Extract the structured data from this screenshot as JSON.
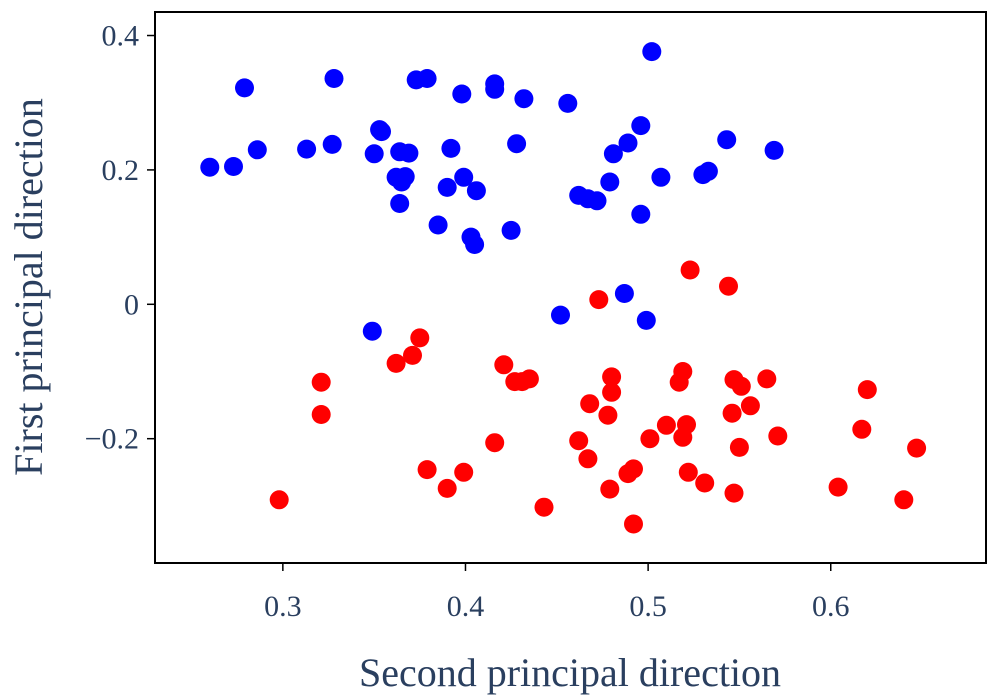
{
  "colors": {
    "class_a": "#0000ff",
    "class_b": "#ff0000",
    "text": "#2a3f5f",
    "frame": "#000000"
  },
  "chart_data": {
    "type": "scatter",
    "title": "",
    "xlabel": "Second principal direction",
    "ylabel": "First principal direction",
    "xlim": [
      0.23,
      0.685
    ],
    "ylim": [
      -0.385,
      0.435
    ],
    "grid": false,
    "legend": "none",
    "x_ticks": [
      0.3,
      0.4,
      0.5,
      0.6
    ],
    "x_tick_labels": [
      "0.3",
      "0.4",
      "0.5",
      "0.6"
    ],
    "y_ticks": [
      0.4,
      0.2,
      0,
      -0.2
    ],
    "y_tick_labels": [
      "0.4",
      "0.2",
      "0",
      "−0.2"
    ],
    "series": [
      {
        "color": "#0000ff",
        "points": [
          [
            0.26,
            0.204
          ],
          [
            0.273,
            0.205
          ],
          [
            0.279,
            0.322
          ],
          [
            0.286,
            0.23
          ],
          [
            0.313,
            0.231
          ],
          [
            0.327,
            0.238
          ],
          [
            0.328,
            0.336
          ],
          [
            0.35,
            0.224
          ],
          [
            0.353,
            0.26
          ],
          [
            0.354,
            0.257
          ],
          [
            0.362,
            0.189
          ],
          [
            0.364,
            0.227
          ],
          [
            0.364,
            0.15
          ],
          [
            0.365,
            0.182
          ],
          [
            0.367,
            0.19
          ],
          [
            0.369,
            0.225
          ],
          [
            0.373,
            0.334
          ],
          [
            0.379,
            0.336
          ],
          [
            0.385,
            0.118
          ],
          [
            0.39,
            0.174
          ],
          [
            0.392,
            0.232
          ],
          [
            0.398,
            0.313
          ],
          [
            0.399,
            0.189
          ],
          [
            0.403,
            0.1
          ],
          [
            0.405,
            0.089
          ],
          [
            0.406,
            0.169
          ],
          [
            0.416,
            0.328
          ],
          [
            0.416,
            0.32
          ],
          [
            0.425,
            0.11
          ],
          [
            0.428,
            0.239
          ],
          [
            0.432,
            0.306
          ],
          [
            0.456,
            0.299
          ],
          [
            0.462,
            0.162
          ],
          [
            0.467,
            0.157
          ],
          [
            0.472,
            0.154
          ],
          [
            0.479,
            0.182
          ],
          [
            0.481,
            0.224
          ],
          [
            0.489,
            0.24
          ],
          [
            0.496,
            0.266
          ],
          [
            0.496,
            0.134
          ],
          [
            0.502,
            0.376
          ],
          [
            0.507,
            0.189
          ],
          [
            0.53,
            0.193
          ],
          [
            0.533,
            0.198
          ],
          [
            0.543,
            0.245
          ],
          [
            0.569,
            0.229
          ],
          [
            0.349,
            -0.04
          ],
          [
            0.452,
            -0.016
          ],
          [
            0.487,
            0.016
          ],
          [
            0.499,
            -0.024
          ]
        ]
      },
      {
        "color": "#ff0000",
        "points": [
          [
            0.298,
            -0.291
          ],
          [
            0.321,
            -0.116
          ],
          [
            0.321,
            -0.164
          ],
          [
            0.362,
            -0.088
          ],
          [
            0.371,
            -0.076
          ],
          [
            0.375,
            -0.05
          ],
          [
            0.379,
            -0.246
          ],
          [
            0.39,
            -0.274
          ],
          [
            0.399,
            -0.25
          ],
          [
            0.416,
            -0.206
          ],
          [
            0.421,
            -0.09
          ],
          [
            0.427,
            -0.115
          ],
          [
            0.431,
            -0.115
          ],
          [
            0.435,
            -0.111
          ],
          [
            0.443,
            -0.302
          ],
          [
            0.462,
            -0.203
          ],
          [
            0.467,
            -0.23
          ],
          [
            0.468,
            -0.148
          ],
          [
            0.473,
            0.007
          ],
          [
            0.478,
            -0.165
          ],
          [
            0.479,
            -0.275
          ],
          [
            0.48,
            -0.108
          ],
          [
            0.48,
            -0.131
          ],
          [
            0.489,
            -0.252
          ],
          [
            0.492,
            -0.327
          ],
          [
            0.492,
            -0.245
          ],
          [
            0.501,
            -0.2
          ],
          [
            0.51,
            -0.18
          ],
          [
            0.517,
            -0.116
          ],
          [
            0.519,
            -0.1
          ],
          [
            0.519,
            -0.198
          ],
          [
            0.521,
            -0.179
          ],
          [
            0.522,
            -0.25
          ],
          [
            0.523,
            0.051
          ],
          [
            0.531,
            -0.266
          ],
          [
            0.544,
            0.027
          ],
          [
            0.546,
            -0.162
          ],
          [
            0.547,
            -0.112
          ],
          [
            0.547,
            -0.281
          ],
          [
            0.55,
            -0.213
          ],
          [
            0.551,
            -0.122
          ],
          [
            0.556,
            -0.151
          ],
          [
            0.565,
            -0.111
          ],
          [
            0.571,
            -0.196
          ],
          [
            0.604,
            -0.272
          ],
          [
            0.617,
            -0.186
          ],
          [
            0.62,
            -0.127
          ],
          [
            0.64,
            -0.291
          ],
          [
            0.647,
            -0.214
          ]
        ]
      }
    ]
  }
}
